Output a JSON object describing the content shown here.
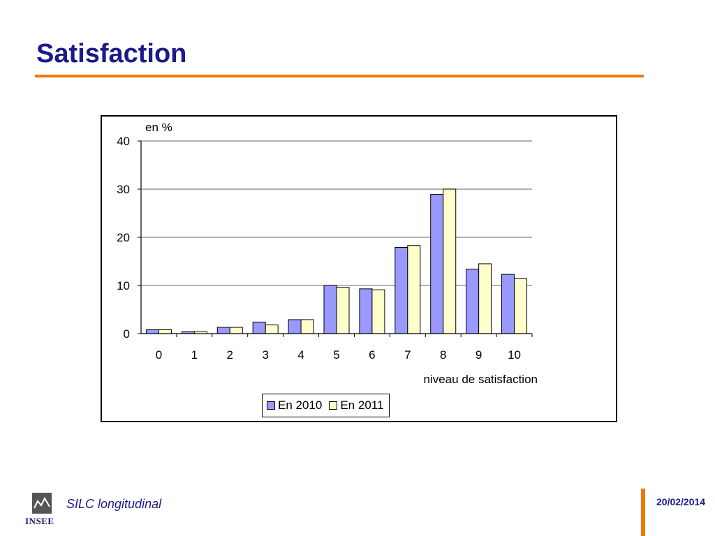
{
  "slide": {
    "title": "Satisfaction",
    "footer_label": "SILC longitudinal",
    "date": "20/02/2014",
    "logo_text": "INSEE",
    "accent_color": "#f07800",
    "title_color": "#1a1a8c"
  },
  "chart_data": {
    "type": "bar",
    "title": "",
    "ylabel": "en %",
    "xlabel": "niveau de satisfaction",
    "categories": [
      "0",
      "1",
      "2",
      "3",
      "4",
      "5",
      "6",
      "7",
      "8",
      "9",
      "10"
    ],
    "series": [
      {
        "name": "En 2010",
        "color": "#9999ff",
        "values": [
          0.8,
          0.4,
          1.3,
          2.4,
          2.9,
          10.0,
          9.3,
          17.9,
          28.9,
          13.4,
          12.3
        ]
      },
      {
        "name": "En 2011",
        "color": "#ffffcc",
        "values": [
          0.8,
          0.4,
          1.3,
          1.8,
          2.9,
          9.6,
          9.1,
          18.3,
          30.0,
          14.5,
          11.4
        ]
      }
    ],
    "ylim": [
      0,
      40
    ],
    "yticks": [
      "0",
      "10",
      "20",
      "30",
      "40"
    ],
    "grid": true,
    "legend": "bottom"
  }
}
